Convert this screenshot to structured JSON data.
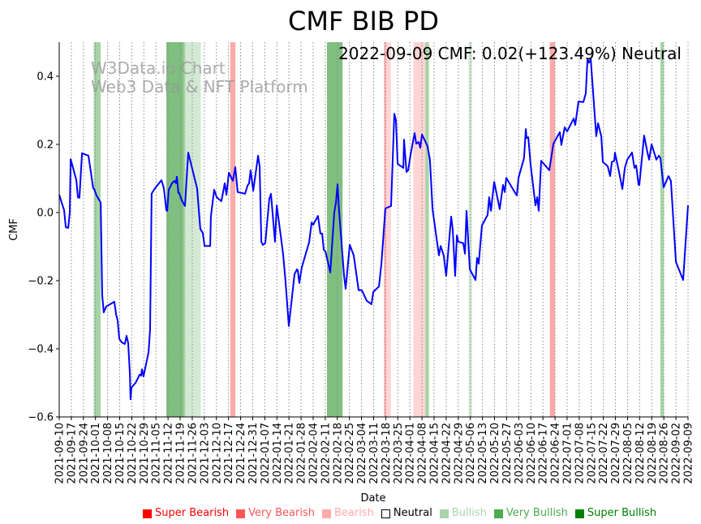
{
  "chart_data": {
    "type": "line",
    "title": "CMF BIB PD",
    "xlabel": "Date",
    "ylabel": "CMF",
    "start_date": "2021-09-10",
    "end_date": "2022-09-09",
    "ylim": [
      -0.6,
      0.5
    ],
    "yticks": [
      -0.6,
      -0.4,
      -0.2,
      0.0,
      0.2,
      0.4
    ],
    "ytick_labels": [
      "−0.6",
      "−0.4",
      "−0.2",
      "0.0",
      "0.2",
      "0.4"
    ],
    "grid": "vertical dotted at weekly x ticks",
    "xtick_labels": [
      "2021-09-10",
      "2021-09-17",
      "2021-09-24",
      "2021-10-01",
      "2021-10-08",
      "2021-10-15",
      "2021-10-22",
      "2021-10-29",
      "2021-11-05",
      "2021-11-12",
      "2021-11-19",
      "2021-11-26",
      "2021-12-03",
      "2021-12-10",
      "2021-12-17",
      "2021-12-24",
      "2021-12-31",
      "2022-01-07",
      "2022-01-14",
      "2022-01-21",
      "2022-01-28",
      "2022-02-04",
      "2022-02-11",
      "2022-02-18",
      "2022-02-25",
      "2022-03-04",
      "2022-03-11",
      "2022-03-18",
      "2022-03-25",
      "2022-04-01",
      "2022-04-08",
      "2022-04-15",
      "2022-04-22",
      "2022-04-29",
      "2022-05-06",
      "2022-05-13",
      "2022-05-20",
      "2022-05-27",
      "2022-06-03",
      "2022-06-10",
      "2022-06-17",
      "2022-06-24",
      "2022-07-01",
      "2022-07-08",
      "2022-07-15",
      "2022-07-22",
      "2022-07-29",
      "2022-08-05",
      "2022-08-12",
      "2022-08-19",
      "2022-08-26",
      "2022-09-02",
      "2022-09-09"
    ],
    "series": [
      {
        "name": "CMF",
        "color": "#0000ff",
        "x_days_since_start": [
          0,
          2.8,
          3.8,
          5.2,
          6.1,
          6.6,
          9.9,
          10.8,
          11.7,
          13.2,
          16.9,
          19.7,
          20.2,
          21.6,
          24.0,
          24.9,
          25.8,
          27.2,
          31.9,
          32.9,
          33.8,
          34.8,
          36.2,
          38.0,
          39.0,
          39.9,
          40.9,
          41.3,
          41.8,
          44.2,
          45.6,
          46.5,
          47.4,
          47.9,
          48.8,
          51.7,
          52.6,
          53.5,
          54.0,
          55.4,
          59.2,
          60.6,
          62.0,
          62.5,
          63.4,
          65.3,
          66.7,
          67.6,
          68.1,
          69.0,
          69.5,
          70.9,
          72.8,
          74.7,
          79.8,
          81.7,
          83.1,
          84.1,
          87.4,
          87.8,
          89.7,
          91.1,
          93.9,
          95.8,
          96.8,
          98.2,
          100.5,
          101.9,
          103.3,
          107.6,
          109.0,
          109.9,
          110.8,
          112.3,
          115.1,
          116.0,
          117.0,
          117.9,
          119.3,
          121.6,
          122.6,
          124.9,
          125.9,
          129.6,
          131.0,
          132.9,
          136.2,
          137.6,
          138.1,
          139.0,
          140.4,
          144.7,
          146.1,
          147.0,
          149.8,
          151.2,
          152.2,
          153.1,
          154.1,
          156.9,
          159.2,
          160.2,
          161.1,
          162.0,
          164.9,
          165.8,
          168.2,
          170.5,
          173.3,
          175.2,
          178.0,
          180.8,
          181.8,
          185.1,
          186.5,
          188.8,
          192.1,
          194.0,
          194.9,
          195.9,
          199.2,
          199.6,
          201.0,
          202.0,
          203.4,
          205.7,
          206.7,
          208.1,
          209.0,
          210.0,
          213.2,
          214.6,
          216.1,
          219.8,
          220.8,
          222.6,
          224.0,
          226.9,
          227.8,
          229.2,
          230.2,
          231.1,
          233.9,
          234.9,
          235.8,
          237.7,
          241.0,
          241.9,
          242.8,
          244.7,
          248.0,
          248.9,
          249.9,
          251.8,
          255.0,
          256.9,
          257.9,
          258.8,
          264.0,
          264.9,
          265.9,
          269.1,
          270.1,
          270.5,
          271.5,
          272.9,
          275.7,
          276.7,
          277.6,
          279.0,
          283.7,
          286.1,
          289.8,
          290.7,
          292.6,
          294.0,
          297.8,
          298.7,
          300.6,
          303.4,
          304.8,
          305.8,
          306.7,
          307.7,
          310.9,
          311.9,
          313.8,
          314.7,
          317.5,
          318.9,
          319.9,
          321.3,
          321.7,
          324.1,
          326.0,
          327.4,
          328.8,
          331.6,
          333.0,
          334.0,
          335.4,
          335.8,
          338.6,
          340.5,
          341.5,
          342.9,
          345.7,
          347.1,
          348.0,
          349.9,
          352.7,
          354.1,
          357.0,
          361.2,
          364.0
        ],
        "values": [
          0.052,
          0.007,
          -0.043,
          -0.045,
          0,
          0.157,
          0.095,
          0.045,
          0.043,
          0.174,
          0.167,
          0.071,
          0.069,
          0.05,
          0.029,
          -0.243,
          -0.293,
          -0.276,
          -0.262,
          -0.298,
          -0.317,
          -0.371,
          -0.381,
          -0.386,
          -0.362,
          -0.383,
          -0.474,
          -0.548,
          -0.514,
          -0.5,
          -0.486,
          -0.476,
          -0.479,
          -0.46,
          -0.481,
          -0.41,
          -0.343,
          0.055,
          0.06,
          0.071,
          0.095,
          0.071,
          0.007,
          0.005,
          0.067,
          0.086,
          0.093,
          0.086,
          0.105,
          0.057,
          0.057,
          0.036,
          0.019,
          0.176,
          0.071,
          -0.048,
          -0.06,
          -0.098,
          -0.098,
          -0.012,
          0.067,
          0.045,
          0.033,
          0.086,
          0.052,
          0.117,
          0.093,
          0.133,
          0.06,
          0.055,
          0.079,
          0.086,
          0.124,
          0.064,
          0.167,
          0.136,
          -0.086,
          -0.095,
          -0.09,
          0.04,
          0.055,
          -0.086,
          0.021,
          -0.121,
          -0.202,
          -0.333,
          -0.181,
          -0.167,
          -0.169,
          -0.207,
          -0.162,
          -0.086,
          -0.029,
          -0.036,
          -0.01,
          -0.062,
          -0.062,
          -0.109,
          -0.114,
          -0.176,
          0,
          0.029,
          0.083,
          0.005,
          -0.186,
          -0.224,
          -0.095,
          -0.126,
          -0.228,
          -0.228,
          -0.259,
          -0.269,
          -0.233,
          -0.217,
          -0.15,
          0.012,
          0.019,
          0.29,
          0.271,
          0.143,
          0.131,
          0.214,
          0.119,
          0.124,
          0.171,
          0.233,
          0.202,
          0.207,
          0.19,
          0.229,
          0.195,
          0.155,
          0.01,
          -0.126,
          -0.098,
          -0.126,
          -0.186,
          -0.012,
          -0.05,
          -0.186,
          -0.067,
          -0.086,
          -0.09,
          -0.121,
          0.005,
          -0.167,
          -0.198,
          -0.133,
          -0.15,
          -0.038,
          -0.007,
          0.045,
          0.005,
          0.09,
          0.01,
          0.081,
          0.06,
          0.102,
          0.057,
          0.05,
          0.102,
          0.16,
          0.245,
          0.219,
          0.221,
          0.14,
          0.021,
          0.045,
          0.005,
          0.152,
          0.124,
          0.202,
          0.236,
          0.198,
          0.25,
          0.238,
          0.276,
          0.257,
          0.326,
          0.324,
          0.35,
          0.45,
          0.44,
          0.45,
          0.224,
          0.262,
          0.224,
          0.148,
          0.136,
          0.107,
          0.148,
          0.152,
          0.176,
          0.119,
          0.069,
          0.131,
          0.155,
          0.176,
          0.131,
          0.138,
          0.081,
          0.081,
          0.226,
          0.176,
          0.155,
          0.2,
          0.155,
          0.167,
          0.16,
          0.074,
          0.107,
          0.093,
          -0.145,
          -0.198,
          0.021
        ]
      }
    ],
    "bands": [
      {
        "category": "Very Bullish",
        "start": "2021-09-30",
        "end": "2021-10-04"
      },
      {
        "category": "Super Bullish",
        "start": "2021-11-11",
        "end": "2021-11-21"
      },
      {
        "category": "Very Bullish",
        "start": "2021-11-21",
        "end": "2021-11-22"
      },
      {
        "category": "Bullish",
        "start": "2021-11-22",
        "end": "2021-12-01"
      },
      {
        "category": "Very Bearish",
        "start": "2021-12-18",
        "end": "2021-12-21"
      },
      {
        "category": "Super Bullish",
        "start": "2022-02-12",
        "end": "2022-02-21"
      },
      {
        "category": "Very Bearish",
        "start": "2022-03-17",
        "end": "2022-03-18"
      },
      {
        "category": "Bearish",
        "start": "2022-03-18",
        "end": "2022-03-21"
      },
      {
        "category": "Bearish",
        "start": "2022-04-03",
        "end": "2022-04-10"
      },
      {
        "category": "Very Bullish",
        "start": "2022-04-10",
        "end": "2022-04-12"
      },
      {
        "category": "Bullish",
        "start": "2022-05-05",
        "end": "2022-05-07"
      },
      {
        "category": "Very Bearish",
        "start": "2022-06-21",
        "end": "2022-06-24"
      },
      {
        "category": "Very Bullish",
        "start": "2022-08-24",
        "end": "2022-08-26"
      }
    ],
    "annotation": "2022-09-09 CMF: 0.02(+123.49%) Neutral",
    "watermark": [
      "W3Data.io Chart",
      "Web3 Data & NFT Platform"
    ],
    "legend_placement": "bottom",
    "legend": [
      {
        "label": "Super Bearish",
        "color": "#ff0000"
      },
      {
        "label": "Very Bearish",
        "color": "#ff5555"
      },
      {
        "label": "Bearish",
        "color": "#ffaaaa"
      },
      {
        "label": "Neutral",
        "color": "#ffffff",
        "text_color": "#000000"
      },
      {
        "label": "Bullish",
        "color": "#aad4aa"
      },
      {
        "label": "Very Bullish",
        "color": "#4daa4d"
      },
      {
        "label": "Super Bullish",
        "color": "#008000"
      }
    ]
  }
}
